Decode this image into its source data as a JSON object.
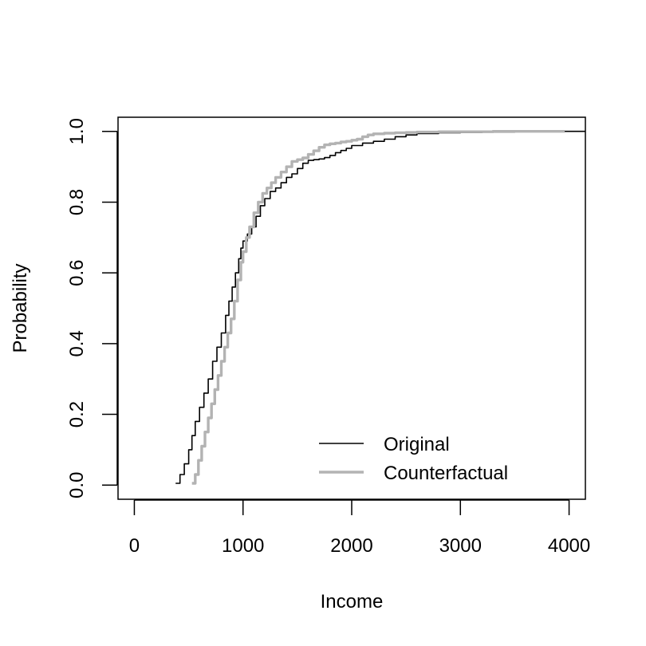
{
  "chart_data": {
    "type": "line",
    "title": "",
    "xlabel": "Income",
    "ylabel": "Probability",
    "xlim": [
      -150,
      4150
    ],
    "ylim": [
      -0.04,
      1.04
    ],
    "xticks": [
      0,
      1000,
      2000,
      3000,
      4000
    ],
    "xtick_labels": [
      "0",
      "1000",
      "2000",
      "3000",
      "4000"
    ],
    "yticks": [
      0.0,
      0.2,
      0.4,
      0.6,
      0.8,
      1.0
    ],
    "ytick_labels": [
      "0.0",
      "0.2",
      "0.4",
      "0.6",
      "0.8",
      "1.0"
    ],
    "grid": false,
    "legend": {
      "position": "bottom-right"
    },
    "series": [
      {
        "name": "Original",
        "color": "#000000",
        "x": [
          380,
          420,
          460,
          500,
          530,
          560,
          600,
          640,
          680,
          720,
          760,
          800,
          840,
          870,
          900,
          930,
          960,
          980,
          1000,
          1040,
          1080,
          1120,
          1160,
          1200,
          1250,
          1300,
          1350,
          1400,
          1450,
          1500,
          1550,
          1600,
          1650,
          1700,
          1750,
          1800,
          1850,
          1900,
          1950,
          2000,
          2100,
          2200,
          2300,
          2400,
          2500,
          2600,
          2800,
          3000,
          3200,
          3500,
          3800,
          4150
        ],
        "y": [
          0.005,
          0.03,
          0.06,
          0.1,
          0.14,
          0.18,
          0.22,
          0.26,
          0.3,
          0.35,
          0.39,
          0.43,
          0.48,
          0.52,
          0.56,
          0.6,
          0.64,
          0.67,
          0.69,
          0.71,
          0.73,
          0.76,
          0.79,
          0.81,
          0.83,
          0.84,
          0.855,
          0.87,
          0.88,
          0.895,
          0.91,
          0.918,
          0.92,
          0.922,
          0.926,
          0.932,
          0.94,
          0.946,
          0.952,
          0.96,
          0.967,
          0.972,
          0.978,
          0.985,
          0.99,
          0.994,
          0.996,
          0.997,
          0.998,
          0.999,
          1.0,
          1.0
        ]
      },
      {
        "name": "Counterfactual",
        "color": "#b3b3b3",
        "x": [
          530,
          560,
          590,
          620,
          650,
          680,
          710,
          740,
          770,
          800,
          830,
          860,
          890,
          920,
          950,
          980,
          1000,
          1030,
          1060,
          1100,
          1140,
          1180,
          1220,
          1260,
          1300,
          1350,
          1400,
          1450,
          1500,
          1550,
          1600,
          1650,
          1700,
          1750,
          1800,
          1850,
          1900,
          1950,
          2000,
          2050,
          2100,
          2150,
          2200,
          2300,
          2400,
          2500,
          2600,
          2800,
          3000,
          3300,
          3600,
          3960
        ],
        "y": [
          0.005,
          0.03,
          0.07,
          0.11,
          0.15,
          0.19,
          0.23,
          0.27,
          0.31,
          0.35,
          0.39,
          0.43,
          0.47,
          0.52,
          0.58,
          0.63,
          0.66,
          0.7,
          0.73,
          0.77,
          0.8,
          0.825,
          0.84,
          0.855,
          0.87,
          0.885,
          0.9,
          0.915,
          0.92,
          0.925,
          0.935,
          0.945,
          0.955,
          0.962,
          0.965,
          0.967,
          0.97,
          0.972,
          0.975,
          0.978,
          0.985,
          0.99,
          0.993,
          0.995,
          0.996,
          0.997,
          0.998,
          0.999,
          0.999,
          1.0,
          1.0,
          1.0
        ]
      }
    ]
  }
}
